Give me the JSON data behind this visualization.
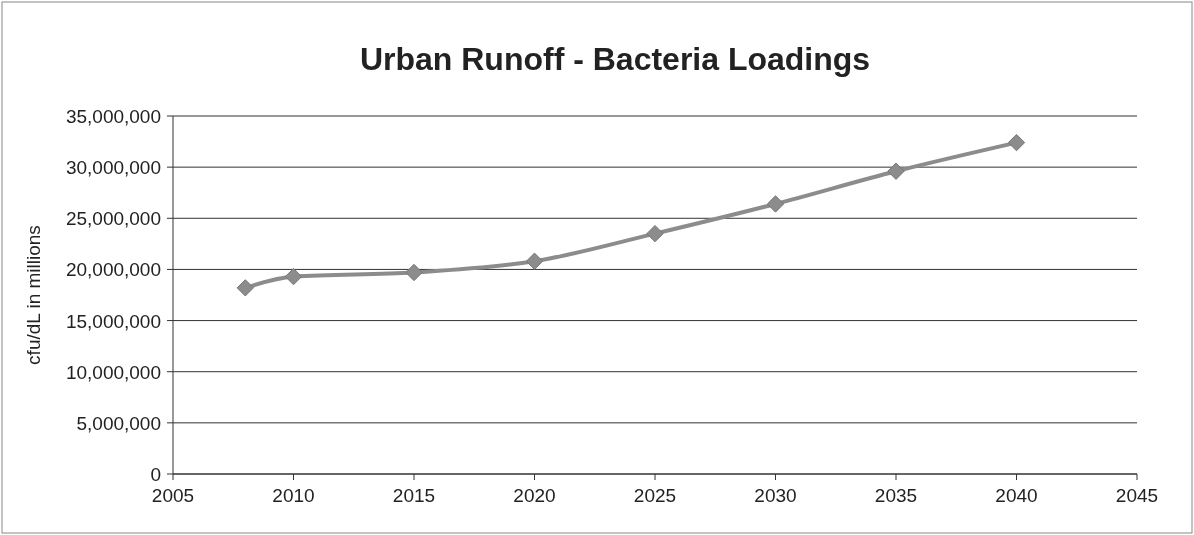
{
  "chart_data": {
    "type": "line",
    "title": "Urban Runoff - Bacteria Loadings",
    "ylabel": "cfu/dL in millions",
    "x": [
      2008,
      2010,
      2015,
      2020,
      2025,
      2030,
      2035,
      2040
    ],
    "series": [
      {
        "color": "#8c8c8c",
        "values": [
          18200000,
          19300000,
          19700000,
          20800000,
          23500000,
          26400000,
          29600000,
          32400000
        ]
      }
    ],
    "xlim": [
      2005,
      2045
    ],
    "xticks": [
      2005,
      2010,
      2015,
      2020,
      2025,
      2030,
      2035,
      2040,
      2045
    ],
    "ylim": [
      0,
      35000000
    ],
    "yticks": [
      {
        "value": 0,
        "label": "0"
      },
      {
        "value": 5000000,
        "label": "5,000,000"
      },
      {
        "value": 10000000,
        "label": "10,000,000"
      },
      {
        "value": 15000000,
        "label": "15,000,000"
      },
      {
        "value": 20000000,
        "label": "20,000,000"
      },
      {
        "value": 25000000,
        "label": "25,000,000"
      },
      {
        "value": 30000000,
        "label": "30,000,000"
      },
      {
        "value": 35000000,
        "label": "35,000,000"
      }
    ],
    "grid": "y",
    "marker": "diamond",
    "line_style": "solid"
  }
}
